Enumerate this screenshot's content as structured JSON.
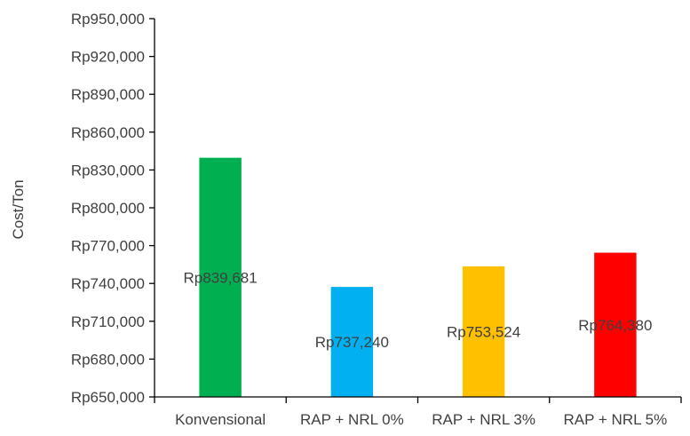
{
  "chart_data": {
    "type": "bar",
    "title": "",
    "xlabel": "",
    "ylabel": "Cost/Ton",
    "ylim": [
      650000,
      950000
    ],
    "ytick_step": 30000,
    "yticks": [
      "Rp650,000",
      "Rp680,000",
      "Rp710,000",
      "Rp740,000",
      "Rp770,000",
      "Rp800,000",
      "Rp830,000",
      "Rp860,000",
      "Rp890,000",
      "Rp920,000",
      "Rp950,000"
    ],
    "categories": [
      "Konvensional",
      "RAP + NRL 0%",
      "RAP + NRL 3%",
      "RAP + NRL 5%"
    ],
    "values": [
      839681,
      737240,
      753524,
      764380
    ],
    "data_labels": [
      "Rp839,681",
      "Rp737,240",
      "Rp753,524",
      "Rp764,380"
    ],
    "colors": [
      "#00b050",
      "#00b0f0",
      "#ffc000",
      "#ff0000"
    ],
    "grid": false,
    "legend": "none"
  }
}
